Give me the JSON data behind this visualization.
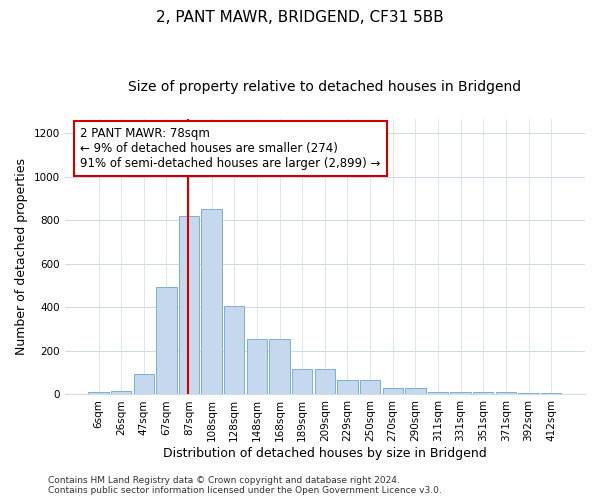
{
  "title": "2, PANT MAWR, BRIDGEND, CF31 5BB",
  "subtitle": "Size of property relative to detached houses in Bridgend",
  "xlabel": "Distribution of detached houses by size in Bridgend",
  "ylabel": "Number of detached properties",
  "bar_labels": [
    "6sqm",
    "26sqm",
    "47sqm",
    "67sqm",
    "87sqm",
    "108sqm",
    "128sqm",
    "148sqm",
    "168sqm",
    "189sqm",
    "209sqm",
    "229sqm",
    "250sqm",
    "270sqm",
    "290sqm",
    "311sqm",
    "331sqm",
    "351sqm",
    "371sqm",
    "392sqm",
    "412sqm"
  ],
  "bar_values": [
    10,
    15,
    95,
    495,
    820,
    850,
    405,
    255,
    255,
    115,
    115,
    65,
    65,
    30,
    30,
    12,
    12,
    12,
    12,
    8,
    5
  ],
  "bar_color": "#c5d8ed",
  "bar_edge_color": "#7bafd4",
  "vline_x": 3.97,
  "vline_color": "#cc0000",
  "annotation_text": "2 PANT MAWR: 78sqm\n← 9% of detached houses are smaller (274)\n91% of semi-detached houses are larger (2,899) →",
  "annotation_box_color": "white",
  "annotation_box_edge_color": "#cc0000",
  "ylim": [
    0,
    1265
  ],
  "yticks": [
    0,
    200,
    400,
    600,
    800,
    1000,
    1200
  ],
  "footer": "Contains HM Land Registry data © Crown copyright and database right 2024.\nContains public sector information licensed under the Open Government Licence v3.0.",
  "bg_color": "#ffffff",
  "plot_bg_color": "#ffffff",
  "grid_color": "#d0dce8",
  "title_fontsize": 11,
  "subtitle_fontsize": 10,
  "axis_label_fontsize": 9,
  "tick_fontsize": 7.5,
  "footer_fontsize": 6.5,
  "annot_fontsize": 8.5
}
